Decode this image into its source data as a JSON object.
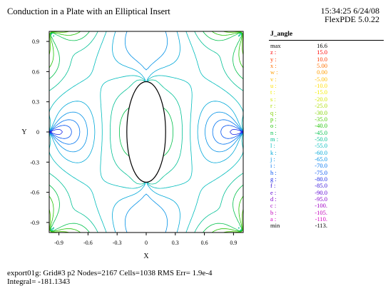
{
  "header": {
    "title": "Conduction in a Plate with an Elliptical Insert",
    "time": "15:34:25 6/24/08",
    "version": "FlexPDE 5.0.22"
  },
  "chart_data": {
    "type": "contour",
    "xlabel": "X",
    "ylabel": "Y",
    "xlim": [
      -1,
      1
    ],
    "ylim": [
      -1,
      1
    ],
    "xticks": [
      -0.9,
      -0.6,
      -0.3,
      0,
      0.3,
      0.6,
      0.9
    ],
    "xtick_labels": [
      "-0.9",
      "-0.6",
      "-0.3",
      "0",
      "0.3",
      "0.6",
      "0.9"
    ],
    "yticks": [
      0.9,
      0.6,
      0.3,
      0,
      -0.3,
      -0.6,
      -0.9
    ],
    "ytick_labels": [
      "0.9",
      "0.6",
      "0.3",
      "0",
      "-0.3",
      "-0.6",
      "-0.9"
    ],
    "insert": {
      "shape": "ellipse",
      "center": [
        0,
        0
      ],
      "semi_axis_x": 0.2,
      "semi_axis_y": 0.5
    },
    "legend": {
      "title": "J_angle",
      "entries": [
        {
          "key": "max",
          "value": "16.6",
          "color": "#000000"
        },
        {
          "key": "z :",
          "value": "15.0",
          "color": "#ff0000"
        },
        {
          "key": "y :",
          "value": "10.0",
          "color": "#ff3a00"
        },
        {
          "key": "x :",
          "value": "5.00",
          "color": "#ff7000"
        },
        {
          "key": "w :",
          "value": "0.00",
          "color": "#ff9c00"
        },
        {
          "key": "v :",
          "value": "-5.00",
          "color": "#ffbf00"
        },
        {
          "key": "u :",
          "value": "-10.0",
          "color": "#ffdf00"
        },
        {
          "key": "t :",
          "value": "-15.0",
          "color": "#f2ee00"
        },
        {
          "key": "s :",
          "value": "-20.0",
          "color": "#d2e600"
        },
        {
          "key": "r :",
          "value": "-25.0",
          "color": "#aadc00"
        },
        {
          "key": "q :",
          "value": "-30.0",
          "color": "#7fd200"
        },
        {
          "key": "p :",
          "value": "-35.0",
          "color": "#4ccb00"
        },
        {
          "key": "o :",
          "value": "-40.0",
          "color": "#1ec400"
        },
        {
          "key": "n :",
          "value": "-45.0",
          "color": "#00c04a"
        },
        {
          "key": "m :",
          "value": "-50.0",
          "color": "#00c094"
        },
        {
          "key": "l :",
          "value": "-55.0",
          "color": "#00bcbc"
        },
        {
          "key": "k :",
          "value": "-60.0",
          "color": "#00a8d8"
        },
        {
          "key": "j :",
          "value": "-65.0",
          "color": "#0090e6"
        },
        {
          "key": "i :",
          "value": "-70.0",
          "color": "#0074f0"
        },
        {
          "key": "h :",
          "value": "-75.0",
          "color": "#0050f0"
        },
        {
          "key": "g :",
          "value": "-80.0",
          "color": "#1c28e6"
        },
        {
          "key": "f :",
          "value": "-85.0",
          "color": "#3410d8"
        },
        {
          "key": "e :",
          "value": "-90.0",
          "color": "#5a00d2"
        },
        {
          "key": "d :",
          "value": "-95.0",
          "color": "#8200cc"
        },
        {
          "key": "c :",
          "value": "-100.",
          "color": "#a000c4"
        },
        {
          "key": "b :",
          "value": "-105.",
          "color": "#c000ba"
        },
        {
          "key": "a :",
          "value": "-110.",
          "color": "#d800c4"
        },
        {
          "key": "min",
          "value": "-113.",
          "color": "#000000"
        }
      ]
    }
  },
  "footer": {
    "stats": "export01g:  Grid#3  p2  Nodes=2167 Cells=1038 RMS Err= 1.9e-4",
    "integral": "Integral= -181.1343"
  }
}
